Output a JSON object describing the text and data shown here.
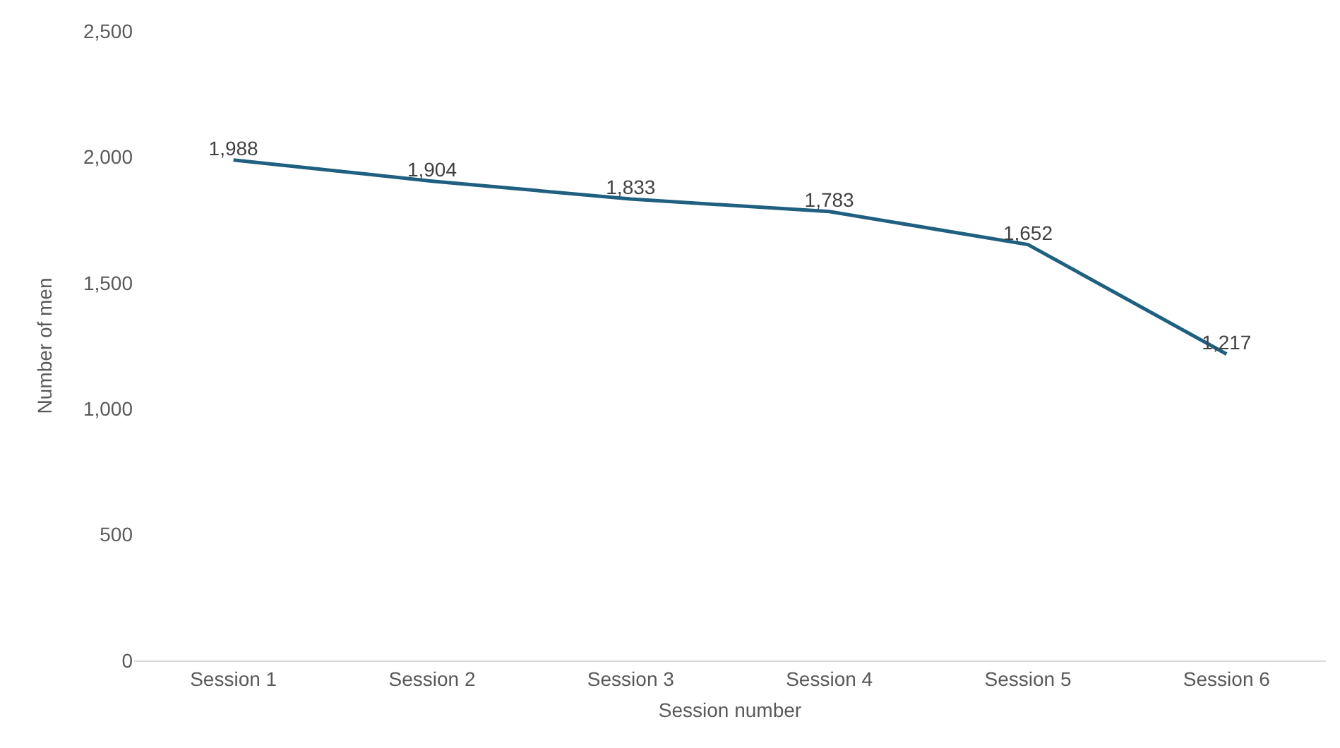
{
  "chart_data": {
    "type": "line",
    "xlabel": "Session number",
    "ylabel": "Number of men",
    "categories": [
      "Session 1",
      "Session 2",
      "Session 3",
      "Session 4",
      "Session 5",
      "Session 6"
    ],
    "series": [
      {
        "color": "#1f6080",
        "values": [
          1988,
          1904,
          1833,
          1783,
          1652,
          1217
        ],
        "value_labels": [
          "1,988",
          "1,904",
          "1,833",
          "1,783",
          "1,652",
          "1,217"
        ]
      }
    ],
    "ylim": [
      0,
      2500
    ],
    "yticks": [
      0,
      500,
      {
        "value": 1000,
        "label": "1,000"
      },
      {
        "value": 1500,
        "label": "1,500"
      },
      {
        "value": 2000,
        "label": "2,000"
      },
      {
        "value": 2500,
        "label": "2,500"
      }
    ],
    "grid": false,
    "legend": false,
    "marker": "none",
    "line_style": "solid"
  }
}
